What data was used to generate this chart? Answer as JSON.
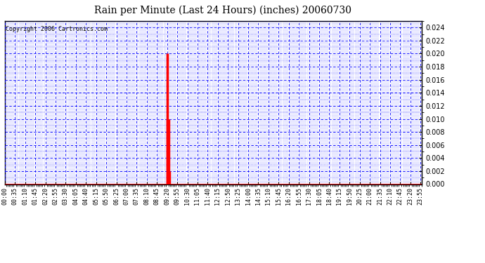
{
  "title": "Rain per Minute (Last 24 Hours) (inches) 20060730",
  "copyright_text": "Copyright 2006 Cartronics.com",
  "background_color": "#ffffff",
  "plot_bg_color": "#ffffff",
  "title_color": "#000000",
  "axis_color": "#000000",
  "bar_color": "#ff0000",
  "grid_color": "#0000ff",
  "border_color": "#000000",
  "baseline_color": "#ff0000",
  "ylim": [
    0.0,
    0.025
  ],
  "yticks": [
    0.0,
    0.002,
    0.004,
    0.006,
    0.008,
    0.01,
    0.012,
    0.014,
    0.016,
    0.018,
    0.02,
    0.022,
    0.024
  ],
  "total_minutes": 1440,
  "rain_events": [
    {
      "minute": 560,
      "value": 0.02
    },
    {
      "minute": 562,
      "value": 0.01
    },
    {
      "minute": 563,
      "value": 0.01
    },
    {
      "minute": 564,
      "value": 0.01
    },
    {
      "minute": 566,
      "value": 0.01
    },
    {
      "minute": 567,
      "value": 0.002
    }
  ],
  "x_tick_labels": [
    "00:00",
    "00:35",
    "01:10",
    "01:45",
    "02:20",
    "02:55",
    "03:30",
    "04:05",
    "04:40",
    "05:15",
    "05:50",
    "06:25",
    "07:00",
    "07:35",
    "08:10",
    "08:45",
    "09:20",
    "09:55",
    "10:30",
    "11:05",
    "11:40",
    "12:15",
    "12:50",
    "13:25",
    "14:00",
    "14:35",
    "15:10",
    "15:45",
    "16:20",
    "16:55",
    "17:30",
    "18:05",
    "18:40",
    "19:15",
    "19:50",
    "20:25",
    "21:00",
    "21:35",
    "22:10",
    "22:45",
    "23:20",
    "23:55"
  ],
  "title_fontsize": 10,
  "ylabel_fontsize": 7,
  "xlabel_fontsize": 6,
  "copyright_fontsize": 6
}
